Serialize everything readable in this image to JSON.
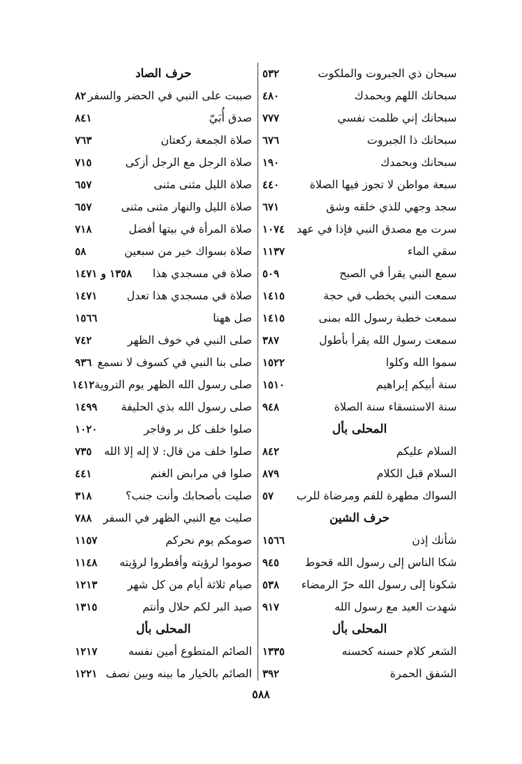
{
  "page_number": "٥٨٨",
  "right_column": [
    {
      "text": "سبحان ذي الجبروت والملكوت",
      "num": "٥٣٢"
    },
    {
      "text": "سبحانك اللهم وبحمدك",
      "num": "٤٨٠"
    },
    {
      "text": "سبحانك إني ظلمت نفسي",
      "num": "٧٧٧"
    },
    {
      "text": "سبحانك ذا الجبروت",
      "num": "٦٧٦"
    },
    {
      "text": "سبحانك وبحمدك",
      "num": "١٩٠"
    },
    {
      "text": "سبعة مواطن لا تجوز فيها الصلاة",
      "num": "٤٤٠"
    },
    {
      "text": "سجد وجهي للذي خلقه وشق",
      "num": "٦٧١"
    },
    {
      "text": "سرت مع مصدق النبي فإذا في عهد",
      "num": "١٠٧٤"
    },
    {
      "text": "سقي الماء",
      "num": "١١٣٧"
    },
    {
      "text": "سمع النبي يقرأ في الصبح",
      "num": "٥٠٩"
    },
    {
      "text": "سمعت النبي يخطب في حجة",
      "num": "١٤١٥"
    },
    {
      "text": "سمعت خطبة رسول الله بمنى",
      "num": "١٤١٥"
    },
    {
      "text": "سمعت رسول الله يقرأ بأطول",
      "num": "٣٨٧"
    },
    {
      "text": "سموا الله وكلوا",
      "num": "١٥٢٢"
    },
    {
      "text": "سنة أبيكم إبراهيم",
      "num": "١٥١٠"
    },
    {
      "text": "سنة الاستسقاء سنة الصلاة",
      "num": "٩٤٨"
    },
    {
      "heading": "المحلى بأل"
    },
    {
      "text": "السلام عليكم",
      "num": "٨٤٢"
    },
    {
      "text": "السلام قبل الكلام",
      "num": "٨٧٩"
    },
    {
      "text": "السواك مطهرة للفم ومرضاة للرب",
      "num": "٥٧"
    },
    {
      "heading": "حرف الشين"
    },
    {
      "text": "شأنك إذن",
      "num": "١٥٦٦"
    },
    {
      "text": "شكا الناس إلى رسول الله قحوط",
      "num": "٩٤٥"
    },
    {
      "text": "شكونا إلى رسول الله حرّ الرمضاء",
      "num": "٥٣٨"
    },
    {
      "text": "شهدت العيد مع رسول الله",
      "num": "٩١٧"
    },
    {
      "heading": "المحلى بأل"
    },
    {
      "text": "الشعر كلام حسنه كحسنه",
      "num": "١٣٣٥"
    },
    {
      "text": "الشفق الحمرة",
      "num": "٣٩٢"
    }
  ],
  "left_column": [
    {
      "heading": "حرف الصاد"
    },
    {
      "text": "صببت على النبي في الحضر والسفر",
      "num": "٨٢"
    },
    {
      "text": "صدق أُبَيّ",
      "num": "٨٤١"
    },
    {
      "text": "صلاة الجمعة ركعتان",
      "num": "٧٦٣"
    },
    {
      "text": "صلاة الرجل مع الرجل أزكى",
      "num": "٧١٥"
    },
    {
      "text": "صلاة الليل مثنى مثنى",
      "num": "٦٥٧"
    },
    {
      "text": "صلاة الليل والنهار مثنى مثنى",
      "num": "٦٥٧"
    },
    {
      "text": "صلاة المرأة في بيتها أفضل",
      "num": "٧١٨"
    },
    {
      "text": "صلاة بسواك خير من سبعين",
      "num": "٥٨"
    },
    {
      "text": "صلاة في مسجدي هذا",
      "num": "١٣٥٨ و ١٤٧١"
    },
    {
      "text": "صلاة في مسجدي هذا تعدل",
      "num": "١٤٧١"
    },
    {
      "text": "صل ههنا",
      "num": "١٥٦٦"
    },
    {
      "text": "صلى النبي في خوف الظهر",
      "num": "٧٤٢"
    },
    {
      "text": "صلى بنا النبي في كسوف لا نسمع",
      "num": "٩٣٦"
    },
    {
      "text": "صلى رسول الله الظهر يوم التروية",
      "num": "١٤١٢"
    },
    {
      "text": "صلى رسول الله بذي الحليفة",
      "num": "١٤٩٩"
    },
    {
      "text": "صلوا خلف كل بر وفاجر",
      "num": "١٠٢٠"
    },
    {
      "text": "صلوا خلف من قال: لا إله إلا الله",
      "num": "٧٣٥"
    },
    {
      "text": "صلوا في مرابض الغنم",
      "num": "٤٤١"
    },
    {
      "text": "صليت بأصحابك وأنت جنب؟",
      "num": "٣١٨"
    },
    {
      "text": "صليت مع النبي الظهر في السفر",
      "num": "٧٨٨"
    },
    {
      "text": "صومكم يوم نحركم",
      "num": "١١٥٧"
    },
    {
      "text": "صوموا لرؤيته وأفطروا لرؤيته",
      "num": "١١٤٨"
    },
    {
      "text": "صيام ثلاثة أيام من كل شهر",
      "num": "١٢١٣"
    },
    {
      "text": "صيد البر لكم حلال وأنتم",
      "num": "١٣١٥"
    },
    {
      "heading": "المحلى بأل"
    },
    {
      "text": "الصائم المتطوع أمين نفسه",
      "num": "١٢١٧"
    },
    {
      "text": "الصائم بالخيار ما بينه وبين نصف",
      "num": "١٢٢١"
    }
  ]
}
